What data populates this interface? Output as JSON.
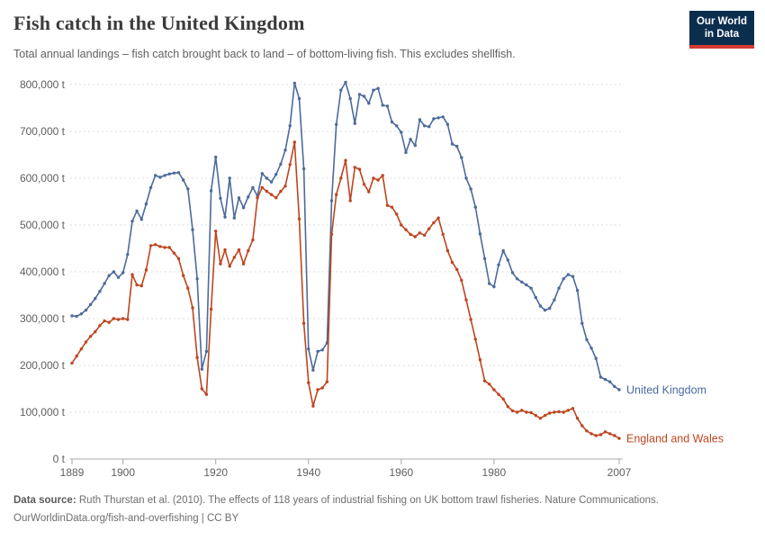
{
  "header": {
    "title": "Fish catch in the United Kingdom",
    "subtitle": "Total annual landings – fish catch brought back to land – of bottom-living fish. This excludes shellfish."
  },
  "logo": {
    "line1": "Our World",
    "line2": "in Data"
  },
  "footer": {
    "source_label": "Data source:",
    "source_text": " Ruth Thurstan et al. (2010). The effects of 118 years of industrial fishing on UK bottom trawl fisheries. Nature Communications.",
    "line2": "OurWorldinData.org/fish-and-overfishing | CC BY"
  },
  "colors": {
    "united_kingdom": "#4C6A9C",
    "england_and_wales": "#BE451F",
    "gridline": "#dcdcdc",
    "axis": "#a8a8a8",
    "tick_text": "#5f5f5f",
    "logo_bg": "#0c2e4e",
    "logo_bar": "#d23b31"
  },
  "chart_data": {
    "type": "line",
    "title": "Fish catch in the United Kingdom",
    "xlabel": "",
    "ylabel": "",
    "unit": "t",
    "x_start": 1889,
    "xlim": [
      1889,
      2007
    ],
    "ylim": [
      0,
      800000
    ],
    "grid": "horizontal-dashed",
    "legend_position": "line-end-labels",
    "xticks": [
      1889,
      1900,
      1920,
      1940,
      1960,
      1980,
      2007
    ],
    "yticks": [
      {
        "v": 0,
        "label": "0 t"
      },
      {
        "v": 100000,
        "label": "100,000 t"
      },
      {
        "v": 200000,
        "label": "200,000 t"
      },
      {
        "v": 300000,
        "label": "300,000 t"
      },
      {
        "v": 400000,
        "label": "400,000 t"
      },
      {
        "v": 500000,
        "label": "500,000 t"
      },
      {
        "v": 600000,
        "label": "600,000 t"
      },
      {
        "v": 700000,
        "label": "700,000 t"
      },
      {
        "v": 800000,
        "label": "800,000 t"
      }
    ],
    "series": [
      {
        "name": "United Kingdom",
        "color": "#4C6A9C",
        "values": [
          306000,
          305000,
          310000,
          318000,
          330000,
          343000,
          358000,
          375000,
          392000,
          400000,
          388000,
          398000,
          437000,
          508000,
          530000,
          512000,
          545000,
          580000,
          606000,
          602000,
          606000,
          609000,
          611000,
          612000,
          596000,
          577000,
          490000,
          385000,
          192000,
          230000,
          573000,
          645000,
          557000,
          517000,
          600000,
          515000,
          558000,
          537000,
          560000,
          580000,
          562000,
          610000,
          600000,
          592000,
          608000,
          630000,
          660000,
          712000,
          803000,
          770000,
          620000,
          235000,
          190000,
          230000,
          233000,
          248000,
          552000,
          715000,
          788000,
          805000,
          770000,
          717000,
          779000,
          775000,
          760000,
          788000,
          792000,
          756000,
          754000,
          720000,
          712000,
          698000,
          655000,
          683000,
          670000,
          725000,
          712000,
          710000,
          727000,
          729000,
          731000,
          715000,
          673000,
          668000,
          644000,
          600000,
          577000,
          538000,
          481000,
          428000,
          375000,
          368000,
          415000,
          445000,
          425000,
          398000,
          385000,
          378000,
          372000,
          365000,
          345000,
          327000,
          318000,
          322000,
          340000,
          365000,
          385000,
          394000,
          390000,
          360000,
          290000,
          255000,
          237000,
          215000,
          175000,
          170000,
          165000,
          155000,
          148000
        ]
      },
      {
        "name": "England and Wales",
        "color": "#BE451F",
        "values": [
          205000,
          220000,
          235000,
          250000,
          262000,
          272000,
          285000,
          295000,
          292000,
          300000,
          298000,
          300000,
          298000,
          394000,
          372000,
          370000,
          404000,
          456000,
          458000,
          454000,
          452000,
          452000,
          440000,
          428000,
          392000,
          365000,
          323000,
          217000,
          150000,
          138000,
          320000,
          487000,
          417000,
          447000,
          412000,
          431000,
          447000,
          417000,
          445000,
          468000,
          558000,
          580000,
          572000,
          565000,
          558000,
          572000,
          583000,
          629000,
          677000,
          513000,
          290000,
          163000,
          113000,
          148000,
          152000,
          165000,
          480000,
          565000,
          600000,
          638000,
          552000,
          623000,
          619000,
          587000,
          571000,
          600000,
          596000,
          606000,
          542000,
          538000,
          523000,
          500000,
          490000,
          480000,
          475000,
          483000,
          478000,
          492000,
          505000,
          515000,
          480000,
          445000,
          420000,
          405000,
          382000,
          340000,
          298000,
          256000,
          212000,
          167000,
          160000,
          148000,
          138000,
          128000,
          112000,
          103000,
          100000,
          104000,
          100000,
          99000,
          93000,
          87000,
          93000,
          98000,
          100000,
          101000,
          100000,
          104000,
          108000,
          87000,
          71000,
          60000,
          54000,
          50000,
          52000,
          58000,
          54000,
          50000,
          44000
        ]
      }
    ]
  }
}
